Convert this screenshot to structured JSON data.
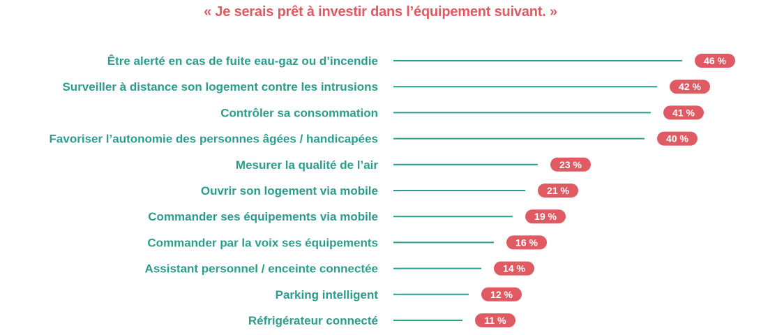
{
  "colors": {
    "title": "#e05a63",
    "label": "#2b9d8c",
    "line": "#2b9d8c",
    "badge": "#e05a63",
    "badge_text": "#ffffff"
  },
  "chart_data": {
    "type": "bar",
    "orientation": "horizontal",
    "title": "« Je serais prêt à investir dans l’équipement suivant. »",
    "categories": [
      "Être alerté en cas de fuite eau-gaz ou d’incendie",
      "Surveiller à distance son logement contre les intrusions",
      "Contrôler sa consommation",
      "Favoriser l’autonomie des personnes âgées / handicapées",
      "Mesurer la qualité de l’air",
      "Ouvrir son logement via mobile",
      "Commander ses équipements via mobile",
      "Commander par la voix ses équipements",
      "Assistant personnel / enceinte connectée",
      "Parking intelligent",
      "Réfrigérateur connecté"
    ],
    "values": [
      46,
      42,
      41,
      40,
      23,
      21,
      19,
      16,
      14,
      12,
      11
    ],
    "value_labels": [
      "46 %",
      "42 %",
      "41 %",
      "40 %",
      "23 %",
      "21 %",
      "19 %",
      "16 %",
      "14 %",
      "12 %",
      "11 %"
    ],
    "unit": "%",
    "xlim": [
      0,
      46
    ],
    "grid": false,
    "legend": "none"
  }
}
